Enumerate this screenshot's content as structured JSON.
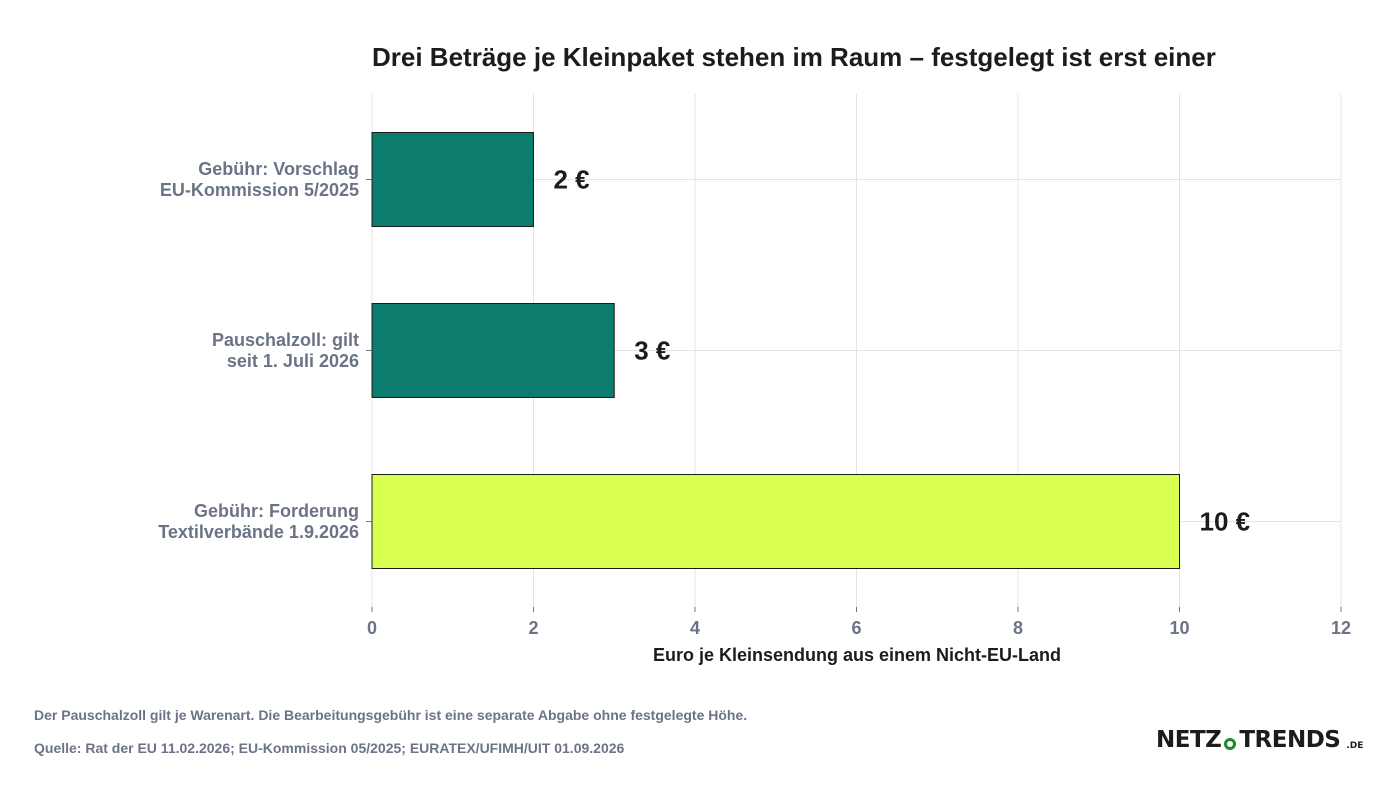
{
  "chart_data": {
    "type": "bar",
    "orientation": "horizontal",
    "title": "Drei Beträge je Kleinpaket stehen im Raum – festgelegt ist erst einer",
    "xlabel": "Euro je Kleinsendung aus einem Nicht-EU-Land",
    "ylabel": "",
    "xlim": [
      0,
      12
    ],
    "xticks": [
      "0",
      "2",
      "4",
      "6",
      "8",
      "10",
      "12"
    ],
    "grid": true,
    "categories": [
      "Gebühr: Vorschlag\nEU-Kommission 5/2025",
      "Pauschalzoll: gilt\nseit 1. Juli 2026",
      "Gebühr: Forderung\nTextilverbände 1.9.2026"
    ],
    "values": [
      2,
      3,
      10
    ],
    "data_labels": [
      "2 €",
      "3 €",
      "10 €"
    ],
    "bar_colors": [
      "#0b7c6e",
      "#0b7c6e",
      "#d8ff4f"
    ]
  },
  "footer": {
    "note": "Der Pauschalzoll gilt je Warenart. Die Bearbeitungsgebühr ist eine separate Abgabe ohne festgelegte Höhe.",
    "source": "Quelle: Rat der EU 11.02.2026; EU-Kommission 05/2025; EURATEX/UFIMH/UIT 01.09.2026"
  },
  "brand": {
    "left": "NETZ",
    "right": "TRENDS",
    "tld": ".DE",
    "accent_color": "#1c8c2c"
  }
}
